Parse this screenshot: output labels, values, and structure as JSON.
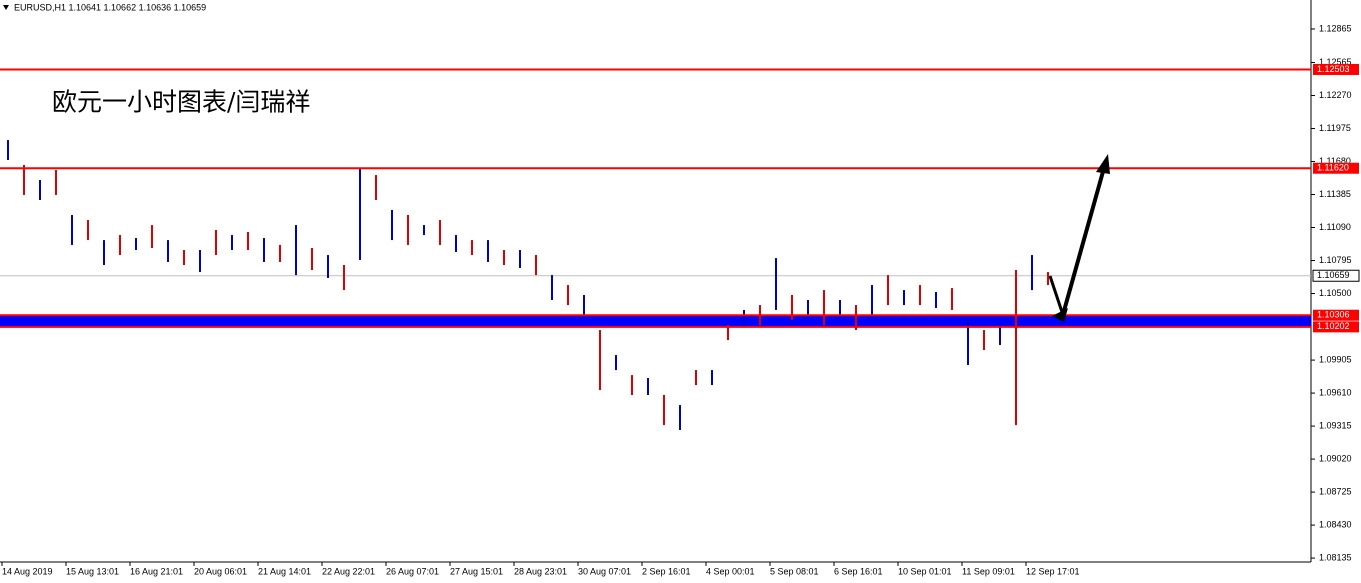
{
  "chart_data": {
    "type": "ohlc",
    "title": "EURUSD,H1  1.10641 1.10662 1.10636 1.10659",
    "annotation": "欧元一小时图表/闫瑞祥",
    "categories": [
      "14 Aug 2019",
      null,
      null,
      null,
      "15 Aug 13:01",
      null,
      null,
      null,
      "16 Aug 21:01",
      null,
      null,
      null,
      "20 Aug 06:01",
      null,
      null,
      null,
      "21 Aug 14:01",
      null,
      null,
      null,
      "22 Aug 22:01",
      null,
      null,
      null,
      "26 Aug 07:01",
      null,
      null,
      null,
      "27 Aug 15:01",
      null,
      null,
      null,
      "28 Aug 23:01",
      null,
      null,
      null,
      "30 Aug 07:01",
      null,
      null,
      null,
      "2 Sep 16:01",
      null,
      null,
      null,
      "4 Sep 00:01",
      null,
      null,
      null,
      "5 Sep 08:01",
      null,
      null,
      null,
      "6 Sep 16:01",
      null,
      null,
      null,
      "10 Sep 01:01",
      null,
      null,
      null,
      "11 Sep 09:01",
      null,
      null,
      null,
      "12 Sep 17:01",
      null
    ],
    "high": [
      1.11872,
      1.11649,
      1.11515,
      1.11604,
      1.11202,
      1.11157,
      1.10978,
      1.11023,
      1.10996,
      1.11112,
      1.10978,
      1.10889,
      1.10889,
      1.11068,
      1.11023,
      1.1105,
      1.10996,
      1.10934,
      1.11112,
      1.10907,
      1.10844,
      1.10755,
      1.11622,
      1.11559,
      1.11247,
      1.11202,
      1.11112,
      1.11157,
      1.11023,
      1.10978,
      1.10978,
      1.10889,
      1.10889,
      1.10844,
      1.10665,
      1.10576,
      1.10487,
      1.10174,
      1.0995,
      1.09771,
      1.09745,
      1.09593,
      1.09503,
      1.09816,
      1.09816,
      1.10218,
      1.10353,
      1.10397,
      1.10817,
      1.10487,
      1.10442,
      1.10531,
      1.10442,
      1.10397,
      1.10576,
      1.10665,
      1.10531,
      1.10576,
      1.10514,
      1.10549,
      1.10263,
      1.10174,
      1.10218,
      1.1071,
      1.10844,
      1.10692
    ],
    "low": [
      1.11694,
      1.11381,
      1.11336,
      1.11381,
      1.10934,
      1.10978,
      1.10755,
      1.10844,
      1.10889,
      1.10907,
      1.10782,
      1.10755,
      1.10692,
      1.10844,
      1.10889,
      1.10889,
      1.10782,
      1.10782,
      1.10665,
      1.1071,
      1.10639,
      1.10531,
      1.108,
      1.11336,
      1.10978,
      1.10934,
      1.11023,
      1.10934,
      1.10871,
      1.10844,
      1.10782,
      1.10755,
      1.10728,
      1.10665,
      1.10442,
      1.10397,
      1.10263,
      1.09637,
      1.09816,
      1.09593,
      1.09593,
      1.09324,
      1.0928,
      1.09682,
      1.09682,
      1.10084,
      1.10218,
      1.10218,
      1.10353,
      1.10263,
      1.10263,
      1.10218,
      1.10263,
      1.10174,
      1.10263,
      1.10397,
      1.10397,
      1.10397,
      1.1037,
      1.10353,
      1.09861,
      1.09995,
      1.1004,
      1.09324,
      1.10531,
      1.10576
    ],
    "colors": [
      "#0000cc",
      "#e00000"
    ],
    "ylim": [
      1.081,
      1.13124
    ],
    "yticks": [
      1.12865,
      1.12565,
      {
        "value": 1.1227,
        "label": "1.12270"
      },
      1.11975,
      {
        "value": 1.1168,
        "label": "1.11680"
      },
      1.11385,
      {
        "value": 1.1109,
        "label": "1.11090"
      },
      1.10795,
      {
        "value": 1.105,
        "label": "1.10500"
      },
      1.09905,
      {
        "value": 1.0961,
        "label": "1.09610"
      },
      1.09315,
      {
        "value": 1.0902,
        "label": "1.09020"
      },
      1.08725,
      {
        "value": 1.0843,
        "label": "1.08430"
      },
      1.08135
    ],
    "levels": [
      1.12503,
      1.1162,
      1.10306,
      1.10202
    ],
    "level_labels": [
      "1.12503",
      "1.11620",
      "1.10306",
      "1.10202"
    ],
    "level_color": "#ff0000",
    "band_color": "#0000ff",
    "last": 1.10659
  }
}
